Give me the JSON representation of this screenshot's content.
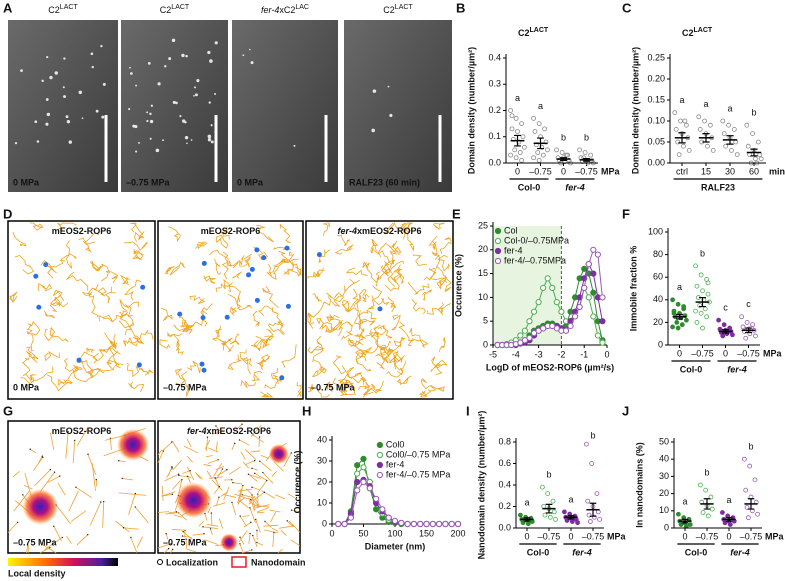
{
  "panel_labels": [
    "A",
    "B",
    "C",
    "D",
    "E",
    "F",
    "G",
    "H",
    "I",
    "J"
  ],
  "images": [
    {
      "title": [
        {
          "text": "C2"
        },
        {
          "text": "LACT",
          "sup": true
        }
      ],
      "caption": "0 MPa"
    },
    {
      "title": [
        {
          "text": "C2"
        },
        {
          "text": "LACT",
          "sup": true
        }
      ],
      "caption": "–0.75 MPa"
    },
    {
      "title": [
        {
          "text": "fer-4",
          "italic": true
        },
        {
          "text": "xC2"
        },
        {
          "text": "LAC",
          "sup": true
        }
      ],
      "caption": "0 MPa"
    },
    {
      "title": [
        {
          "text": "C2"
        },
        {
          "text": "LACT",
          "sup": true
        }
      ],
      "caption": "RALF23 (60 min)"
    },
    {
      "title": [
        {
          "text": "mEOS2-ROP6"
        }
      ],
      "caption": "0 MPa"
    },
    {
      "title": [
        {
          "text": "mEOS2-ROP6"
        }
      ],
      "caption": "–0.75 MPa"
    },
    {
      "title": [
        {
          "text": "fer-4",
          "italic": true
        },
        {
          "text": "xmEOS2-ROP6"
        }
      ],
      "caption": "–0.75 MPa"
    },
    {
      "title": [
        {
          "text": "mEOS2-ROP6"
        }
      ],
      "caption": "–0.75 MPa"
    },
    {
      "title": [
        {
          "text": "fer-4",
          "italic": true
        },
        {
          "text": "xmEOS2-ROP6"
        }
      ],
      "caption": "–0.75 MPa"
    }
  ],
  "legend": {
    "density": "Local density",
    "localization": "Localization",
    "nanodomain": "Nanodomain"
  },
  "chart_data": [
    {
      "type": "dotplot",
      "title": [
        {
          "text": "C2"
        },
        {
          "text": "LACT",
          "sup": true
        }
      ],
      "ylabel": "Domain density (number/µm²)",
      "ylim": [
        0,
        0.4
      ],
      "yticks": [
        {
          "value": 0,
          "label": "0.0"
        },
        0.1,
        0.2,
        0.3,
        0.4
      ],
      "categories": [
        "0",
        "–0.75",
        "0",
        "–0.75"
      ],
      "unit": "MPa",
      "groups": [
        {
          "name": "Col-0"
        },
        {
          "name": "fer-4",
          "italic": true
        }
      ],
      "letters": [
        "a",
        "a",
        "b",
        "b"
      ],
      "colors": [
        "#888888",
        "#888888",
        "#888888",
        "#888888"
      ],
      "filled": [
        false,
        false,
        false,
        false
      ],
      "means": [
        0.085,
        0.075,
        0.015,
        0.012
      ],
      "errors": [
        0.02,
        0.02,
        0.005,
        0.005
      ],
      "points": [
        [
          0.2,
          0.17,
          0.15,
          0.13,
          0.12,
          0.1,
          0.09,
          0.08,
          0.06,
          0.05,
          0.04,
          0.03,
          0.02,
          0.01,
          0.18
        ],
        [
          0.17,
          0.15,
          0.13,
          0.12,
          0.1,
          0.08,
          0.07,
          0.06,
          0.05,
          0.04,
          0.03,
          0.02,
          0.01
        ],
        [
          0.05,
          0.04,
          0.03,
          0.02,
          0.02,
          0.01,
          0.01,
          0.005,
          0,
          0,
          0.03
        ],
        [
          0.05,
          0.04,
          0.03,
          0.02,
          0.01,
          0.01,
          0.005,
          0,
          0,
          0.02
        ]
      ]
    },
    {
      "type": "dotplot",
      "title": [
        {
          "text": "C2"
        },
        {
          "text": "LACT",
          "sup": true
        }
      ],
      "ylabel": "Domain density (number/µm²)",
      "ylim": [
        0,
        0.25
      ],
      "yticks": [
        {
          "value": 0,
          "label": "0.00"
        },
        0.05,
        {
          "value": 0.1,
          "label": "0.10"
        },
        0.15,
        {
          "value": 0.2,
          "label": "0.20"
        },
        0.25
      ],
      "categories": [
        "ctrl",
        "15",
        "30",
        "60"
      ],
      "unit": "min",
      "groups": [
        {
          "name": "RALF23"
        }
      ],
      "letters": [
        "a",
        "a",
        "a",
        "b"
      ],
      "colors": [
        "#888888",
        "#888888",
        "#888888",
        "#888888"
      ],
      "filled": [
        false,
        false,
        false,
        false
      ],
      "means": [
        0.06,
        0.06,
        0.055,
        0.025
      ],
      "errors": [
        0.012,
        0.01,
        0.01,
        0.008
      ],
      "points": [
        [
          0.12,
          0.1,
          0.09,
          0.08,
          0.07,
          0.06,
          0.05,
          0.04,
          0.03,
          0.02,
          0.1
        ],
        [
          0.11,
          0.1,
          0.09,
          0.08,
          0.07,
          0.06,
          0.05,
          0.04,
          0.03
        ],
        [
          0.1,
          0.09,
          0.08,
          0.07,
          0.06,
          0.05,
          0.04,
          0.03,
          0.02
        ],
        [
          0.09,
          0.07,
          0.05,
          0.04,
          0.03,
          0.02,
          0.02,
          0.01,
          0.01,
          0,
          0
        ]
      ]
    },
    {
      "type": "line",
      "xlabel": "LogD of mEOS2-ROP6 (µm²/s)",
      "ylabel": "Occurence (%)",
      "xlim": [
        -5,
        0
      ],
      "xticks": [
        -5,
        -4,
        -3,
        -2,
        -1,
        0
      ],
      "ylim": [
        0,
        25
      ],
      "yticks": [
        0,
        5,
        10,
        15,
        20,
        25
      ],
      "vline": -2,
      "legend": "top-left",
      "x": [
        -4.8,
        -4.6,
        -4.4,
        -4.2,
        -4,
        -3.8,
        -3.6,
        -3.4,
        -3.2,
        -3,
        -2.8,
        -2.6,
        -2.4,
        -2.2,
        -2,
        -1.8,
        -1.6,
        -1.4,
        -1.2,
        -1,
        -0.8,
        -0.6,
        -0.4,
        -0.2
      ],
      "series": [
        {
          "name": "Col",
          "color": "#2e8b2e",
          "filled": true,
          "values": [
            0,
            0,
            0,
            0,
            0.2,
            0.5,
            1,
            2,
            3,
            3.5,
            4,
            4.5,
            4.5,
            4,
            3.5,
            4,
            7,
            10,
            14,
            16,
            15,
            11,
            5,
            1
          ]
        },
        {
          "name": "Col-0/–0.75MPa",
          "color": "#4caf50",
          "filled": false,
          "values": [
            0,
            0,
            0.2,
            0.5,
            1,
            2,
            3,
            5,
            7,
            9,
            12,
            14,
            12,
            9,
            7,
            5,
            5,
            6,
            8,
            12,
            10,
            6,
            2,
            0.5
          ]
        },
        {
          "name": "fer-4",
          "color": "#7b2fa0",
          "filled": true,
          "values": [
            0,
            0,
            0,
            0,
            0,
            0.3,
            0.6,
            1,
            2,
            3,
            3.5,
            4,
            4,
            4,
            3.5,
            3,
            5,
            7,
            10,
            14,
            17,
            15,
            10,
            5
          ]
        },
        {
          "name": "fer-4/–0.75MPa",
          "color": "#9b59b6",
          "filled": false,
          "values": [
            0,
            0,
            0,
            0,
            0.2,
            0.5,
            1,
            1.5,
            2.5,
            3,
            3.5,
            4,
            4,
            3.5,
            3,
            3,
            4,
            6,
            8,
            12,
            17,
            20,
            19,
            10
          ]
        }
      ]
    },
    {
      "type": "dotplot",
      "ylabel": "Immobile fraction %",
      "ylim": [
        0,
        100
      ],
      "yticks": [
        0,
        20,
        40,
        60,
        80,
        100
      ],
      "categories": [
        "0",
        "–0.75",
        "0",
        "–0.75"
      ],
      "unit": "MPa",
      "groups": [
        {
          "name": "Col-0"
        },
        {
          "name": "fer-4",
          "italic": true
        }
      ],
      "letters": [
        "a",
        "b",
        "c",
        "c"
      ],
      "colors": [
        "#2e8b2e",
        "#4caf50",
        "#7b2fa0",
        "#9b59b6"
      ],
      "filled": [
        true,
        false,
        true,
        false
      ],
      "means": [
        25,
        38,
        12,
        13
      ],
      "errors": [
        2,
        4,
        1.5,
        2
      ],
      "points": [
        [
          40,
          36,
          32,
          30,
          28,
          26,
          25,
          24,
          22,
          20,
          18,
          16,
          15,
          34,
          28
        ],
        [
          70,
          62,
          58,
          52,
          48,
          45,
          42,
          40,
          38,
          35,
          32,
          30,
          28,
          25,
          20,
          15,
          55
        ],
        [
          22,
          18,
          15,
          14,
          13,
          12,
          11,
          10,
          9,
          8,
          12
        ],
        [
          25,
          20,
          18,
          16,
          14,
          13,
          12,
          10,
          8,
          6,
          15
        ]
      ]
    },
    {
      "type": "line",
      "xlabel": "Diameter (nm)",
      "ylabel": "Occurence (%)",
      "xlim": [
        0,
        200
      ],
      "xticks": [
        0,
        50,
        100,
        150,
        200
      ],
      "ylim": [
        0,
        40
      ],
      "yticks": [
        0,
        10,
        20,
        30,
        40
      ],
      "legend": "top-right",
      "x": [
        10,
        20,
        30,
        40,
        50,
        60,
        70,
        80,
        90,
        100,
        110,
        120,
        130,
        140,
        150,
        160,
        170,
        180,
        190,
        200
      ],
      "series": [
        {
          "name": "Col0",
          "color": "#2e8b2e",
          "filled": true,
          "values": [
            0,
            0,
            6,
            28,
            31,
            17,
            7,
            3,
            1,
            0.5,
            0,
            0,
            0,
            0,
            0,
            0,
            0,
            0,
            0,
            0
          ]
        },
        {
          "name": "Col0/–0.75 MPa",
          "color": "#4caf50",
          "filled": false,
          "values": [
            0,
            0,
            4,
            24,
            27,
            20,
            10,
            5,
            2,
            1,
            0.5,
            0,
            0,
            0,
            0,
            0,
            0,
            0,
            0,
            0
          ]
        },
        {
          "name": "fer-4",
          "color": "#7b2fa0",
          "filled": true,
          "values": [
            0,
            0,
            5,
            20,
            21,
            18,
            10,
            6,
            3,
            1,
            0.5,
            0,
            0,
            0,
            0,
            0,
            0,
            0,
            0,
            0
          ]
        },
        {
          "name": "fer-4/–0.75 MPa",
          "color": "#9b59b6",
          "filled": false,
          "values": [
            0,
            0,
            3,
            16,
            20,
            17,
            12,
            7,
            3,
            1.5,
            0.5,
            0,
            0,
            0,
            0,
            0,
            0,
            0,
            0,
            0
          ]
        }
      ]
    },
    {
      "type": "dotplot",
      "ylabel": "Nanodomain density (number/µm²)",
      "ylim": [
        0,
        0.8
      ],
      "yticks": [
        {
          "value": 0,
          "label": "0.0"
        },
        0.2,
        0.4,
        0.6,
        0.8
      ],
      "categories": [
        "0",
        "–0.75",
        "0",
        "–0.75"
      ],
      "unit": "MPa",
      "groups": [
        {
          "name": "Col-0"
        },
        {
          "name": "fer-4",
          "italic": true
        }
      ],
      "letters": [
        "a",
        "b",
        "a",
        "b"
      ],
      "colors": [
        "#2e8b2e",
        "#4caf50",
        "#7b2fa0",
        "#9b59b6"
      ],
      "filled": [
        true,
        false,
        true,
        false
      ],
      "means": [
        0.08,
        0.18,
        0.1,
        0.17
      ],
      "errors": [
        0.015,
        0.04,
        0.015,
        0.06
      ],
      "points": [
        [
          0.12,
          0.1,
          0.09,
          0.08,
          0.07,
          0.06,
          0.05,
          0.04
        ],
        [
          0.38,
          0.32,
          0.25,
          0.2,
          0.18,
          0.15,
          0.12,
          0.1,
          0.08
        ],
        [
          0.15,
          0.13,
          0.11,
          0.1,
          0.09,
          0.08,
          0.07,
          0.06,
          0.05
        ],
        [
          0.78,
          0.6,
          0.32,
          0.25,
          0.2,
          0.15,
          0.12,
          0.1,
          0.08,
          0.06
        ]
      ]
    },
    {
      "type": "dotplot",
      "ylabel": "In nanodomains (%)",
      "ylim": [
        0,
        50
      ],
      "yticks": [
        0,
        10,
        20,
        30,
        40,
        50
      ],
      "categories": [
        "0",
        "–0.75",
        "0",
        "–0.75"
      ],
      "unit": "MPa",
      "groups": [
        {
          "name": "Col-0"
        },
        {
          "name": "fer-4",
          "italic": true
        }
      ],
      "letters": [
        "a",
        "b",
        "a",
        "b"
      ],
      "colors": [
        "#2e8b2e",
        "#4caf50",
        "#7b2fa0",
        "#9b59b6"
      ],
      "filled": [
        true,
        false,
        true,
        false
      ],
      "means": [
        4,
        14,
        5,
        14
      ],
      "errors": [
        1,
        3,
        1,
        3
      ],
      "points": [
        [
          8,
          6,
          5,
          4,
          3,
          2,
          2,
          1
        ],
        [
          25,
          22,
          18,
          15,
          13,
          11,
          9,
          7
        ],
        [
          9,
          7,
          6,
          5,
          4,
          4,
          3,
          2
        ],
        [
          40,
          36,
          28,
          22,
          18,
          15,
          12,
          10,
          8,
          6
        ]
      ]
    }
  ]
}
